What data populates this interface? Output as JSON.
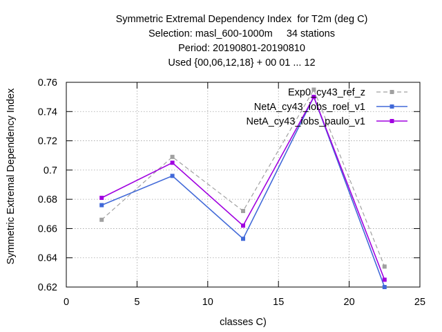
{
  "titles": {
    "line1": "Symmetric Extremal Dependency Index  for T2m (deg C)",
    "line2": "Selection: masl_600-1000m     34 stations",
    "line3": "Period: 20190801-20190810",
    "line4": "Used {00,06,12,18} + 00 01 ... 12"
  },
  "chart_data": {
    "type": "line",
    "title": "Symmetric Extremal Dependency Index  for T2m (deg C)",
    "xlabel": "classes C)",
    "ylabel": "Symmetric Extremal Dependency Index",
    "xlim": [
      0,
      25
    ],
    "ylim": [
      0.62,
      0.76
    ],
    "xticks": [
      0,
      5,
      10,
      15,
      20,
      25
    ],
    "xtick_labels": [
      "0",
      "5",
      "10",
      "15",
      "20",
      "25"
    ],
    "yticks": [
      0.62,
      0.64,
      0.66,
      0.68,
      0.7,
      0.72,
      0.74,
      0.76
    ],
    "ytick_labels": [
      "0.62",
      "0.64",
      "0.66",
      "0.68",
      "0.7",
      "0.72",
      "0.74",
      "0.76"
    ],
    "grid": true,
    "legend_position": "top-right",
    "series": [
      {
        "name": "Exp0_cy43_ref_z",
        "color": "#a0a0a0",
        "dashed": true,
        "x": [
          2.5,
          7.5,
          12.5,
          17.5,
          22.5
        ],
        "y": [
          0.666,
          0.709,
          0.672,
          0.755,
          0.634
        ]
      },
      {
        "name": "NetA_cy43_iobs_roel_v1",
        "color": "#4169d8",
        "dashed": false,
        "x": [
          2.5,
          7.5,
          12.5,
          17.5,
          22.5
        ],
        "y": [
          0.676,
          0.696,
          0.653,
          0.75,
          0.62
        ]
      },
      {
        "name": "NetA_cy43_iobs_paulo_v1",
        "color": "#a000e0",
        "dashed": false,
        "x": [
          2.5,
          7.5,
          12.5,
          17.5,
          22.5
        ],
        "y": [
          0.681,
          0.705,
          0.662,
          0.75,
          0.625
        ]
      }
    ]
  }
}
